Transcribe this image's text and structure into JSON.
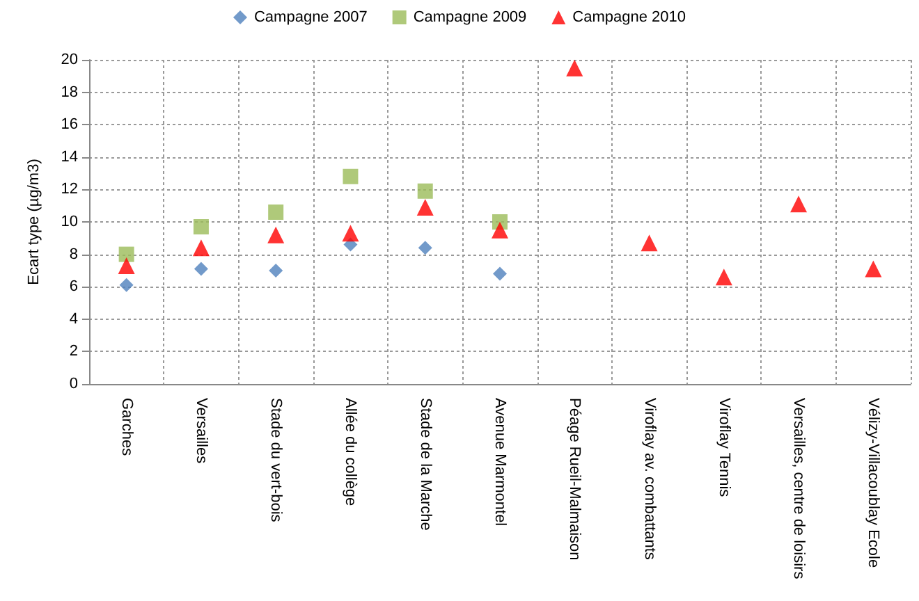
{
  "chart_data": {
    "type": "scatter",
    "ylabel": "Ecart type (µg/m3)",
    "categories": [
      "Garches",
      "Versailles",
      "Stade du vert-bois",
      "Allée du collège",
      "Stade de la Marche",
      "Avenue Marmontel",
      "Péage Rueil-Malmaison",
      "Viroflay av. combattants",
      "Viroflay Tennis",
      "Versailles, centre de loisirs",
      "Vélizy-Villacoublay Ecole"
    ],
    "series": [
      {
        "name": "Campagne 2007",
        "color": "#4f81bd",
        "marker": "diamond",
        "values": [
          6.1,
          7.1,
          7.0,
          8.6,
          8.4,
          6.8,
          null,
          null,
          null,
          null,
          null
        ]
      },
      {
        "name": "Campagne 2009",
        "color": "#9bbb59",
        "marker": "square",
        "values": [
          8.0,
          9.7,
          10.6,
          12.8,
          11.9,
          10.0,
          null,
          null,
          null,
          null,
          null
        ]
      },
      {
        "name": "Campagne 2010",
        "color": "#ff0000",
        "marker": "triangle",
        "values": [
          7.3,
          8.4,
          9.2,
          9.3,
          10.9,
          9.5,
          19.5,
          8.7,
          6.6,
          11.1,
          7.1
        ]
      }
    ],
    "ylim": [
      0,
      20
    ],
    "yticks": [
      0,
      2,
      4,
      6,
      8,
      10,
      12,
      14,
      16,
      18,
      20
    ],
    "grid": true,
    "legend": "top"
  }
}
